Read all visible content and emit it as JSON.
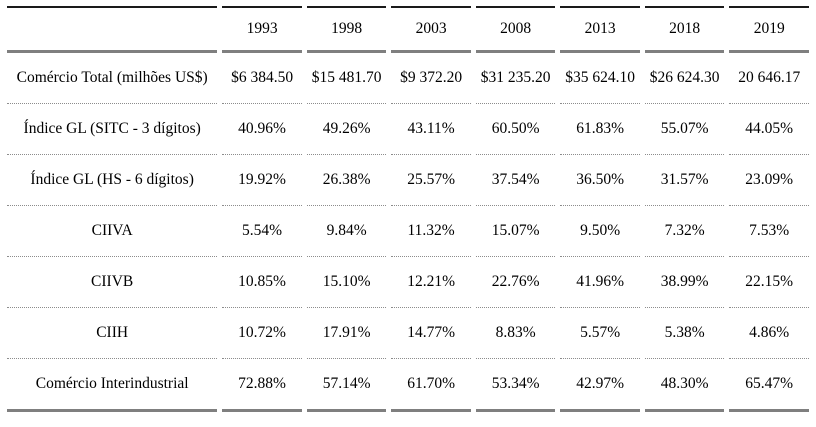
{
  "colors": {
    "text": "#000000",
    "rule_thin_top": "#1a1a1a",
    "rule_thick": "#7f7f7f",
    "rule_dotted": "#8c8c8c",
    "background": "#ffffff"
  },
  "table": {
    "corner_label": "",
    "columns": [
      "1993",
      "1998",
      "2003",
      "2008",
      "2013",
      "2018",
      "2019"
    ],
    "rows": [
      {
        "label": "Comércio Total (milhões US$)",
        "values": [
          "$6 384.50",
          "$15 481.70",
          "$9 372.20",
          "$31 235.20",
          "$35 624.10",
          "$26 624.30",
          "20 646.17"
        ]
      },
      {
        "label": "Índice GL (SITC - 3 dígitos)",
        "values": [
          "40.96%",
          "49.26%",
          "43.11%",
          "60.50%",
          "61.83%",
          "55.07%",
          "44.05%"
        ]
      },
      {
        "label": "Índice GL (HS - 6 dígitos)",
        "values": [
          "19.92%",
          "26.38%",
          "25.57%",
          "37.54%",
          "36.50%",
          "31.57%",
          "23.09%"
        ]
      },
      {
        "label": "CIIVA",
        "values": [
          "5.54%",
          "9.84%",
          "11.32%",
          "15.07%",
          "9.50%",
          "7.32%",
          "7.53%"
        ]
      },
      {
        "label": "CIIVB",
        "values": [
          "10.85%",
          "15.10%",
          "12.21%",
          "22.76%",
          "41.96%",
          "38.99%",
          "22.15%"
        ]
      },
      {
        "label": "CIIH",
        "values": [
          "10.72%",
          "17.91%",
          "14.77%",
          "8.83%",
          "5.57%",
          "5.38%",
          "4.86%"
        ]
      },
      {
        "label": "Comércio Interindustrial",
        "values": [
          "72.88%",
          "57.14%",
          "61.70%",
          "53.34%",
          "42.97%",
          "48.30%",
          "65.47%"
        ]
      }
    ]
  }
}
